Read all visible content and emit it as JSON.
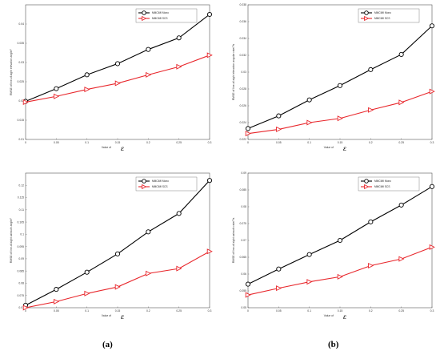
{
  "captions": [
    "(a)",
    "(b)"
  ],
  "chart_data": [
    {
      "type": "line",
      "x": [
        0,
        0.05,
        0.1,
        0.15,
        0.2,
        0.25,
        0.3
      ],
      "xticks": [
        "0",
        "0.05",
        "0.1",
        "0.15",
        "0.2",
        "0.25",
        "0.3"
      ],
      "ylim": [
        0.01,
        0.045
      ],
      "yticks": [
        "0.01",
        "0.015",
        "0.02",
        "0.025",
        "0.03",
        "0.035",
        "0.04"
      ],
      "xlabel": "Value of",
      "xsymbol": "ε",
      "ylabel": "RMSE of line-of-sight elevation angle/°",
      "series": [
        {
          "name": "MMCIMI Mono",
          "color": "#000000",
          "marker": "circle",
          "values": [
            0.0199,
            0.0232,
            0.0268,
            0.0297,
            0.0334,
            0.0364,
            0.0425
          ]
        },
        {
          "name": "MMCIMI SCS",
          "color": "#e8262b",
          "marker": "triangle",
          "values": [
            0.0197,
            0.0212,
            0.023,
            0.0246,
            0.0268,
            0.0289,
            0.0319
          ]
        }
      ]
    },
    {
      "type": "line",
      "x": [
        0,
        0.05,
        0.1,
        0.15,
        0.2,
        0.25,
        0.3
      ],
      "xticks": [
        "0",
        "0.05",
        "0.1",
        "0.15",
        "0.2",
        "0.25",
        "0.3"
      ],
      "ylim": [
        0.022,
        0.038
      ],
      "yticks": [
        "0.022",
        "0.024",
        "0.026",
        "0.028",
        "0.03",
        "0.032",
        "0.034",
        "0.036",
        "0.038"
      ],
      "xlabel": "Value of",
      "xsymbol": "ε",
      "ylabel": "RMSE of line-of-sight elevation angular rate/°/s",
      "series": [
        {
          "name": "MMCIMI Mono",
          "color": "#000000",
          "marker": "circle",
          "values": [
            0.0233,
            0.0248,
            0.0267,
            0.0284,
            0.0303,
            0.0321,
            0.0355
          ]
        },
        {
          "name": "MMCIMI SCS",
          "color": "#e8262b",
          "marker": "triangle",
          "values": [
            0.0227,
            0.0232,
            0.024,
            0.0245,
            0.0255,
            0.0264,
            0.0277
          ]
        }
      ]
    },
    {
      "type": "line",
      "x": [
        0,
        0.05,
        0.1,
        0.15,
        0.2,
        0.25,
        0.3
      ],
      "xticks": [
        "0",
        "0.05",
        "0.1",
        "0.15",
        "0.2",
        "0.25",
        "0.3"
      ],
      "ylim": [
        0.07,
        0.125
      ],
      "yticks": [
        "0.07",
        "0.075",
        "0.08",
        "0.085",
        "0.09",
        "0.095",
        "0.1",
        "0.105",
        "0.11",
        "0.115",
        "0.12"
      ],
      "xlabel": "Value of",
      "xsymbol": "ε",
      "ylabel": "RMSE of line-of-sight azimuth angle/°",
      "series": [
        {
          "name": "MMCIMI Mono",
          "color": "#000000",
          "marker": "circle",
          "values": [
            0.071,
            0.0775,
            0.0845,
            0.092,
            0.101,
            0.1085,
            0.122
          ]
        },
        {
          "name": "MMCIMI SCS",
          "color": "#e8262b",
          "marker": "triangle",
          "values": [
            0.07,
            0.0725,
            0.0758,
            0.0785,
            0.084,
            0.086,
            0.093
          ]
        }
      ]
    },
    {
      "type": "line",
      "x": [
        0,
        0.05,
        0.1,
        0.15,
        0.2,
        0.25,
        0.3
      ],
      "xticks": [
        "0",
        "0.05",
        "0.1",
        "0.15",
        "0.2",
        "0.25",
        "0.3"
      ],
      "ylim": [
        0.05,
        0.09
      ],
      "yticks": [
        "0.05",
        "0.055",
        "0.06",
        "0.065",
        "0.07",
        "0.075",
        "0.08",
        "0.085",
        "0.09"
      ],
      "xlabel": "Value of",
      "xsymbol": "ε",
      "ylabel": "RMSE of line-of-sight azimuth rate/°/s",
      "series": [
        {
          "name": "MMCIMI Mono",
          "color": "#000000",
          "marker": "circle",
          "values": [
            0.057,
            0.0615,
            0.0658,
            0.07,
            0.0755,
            0.0805,
            0.086
          ]
        },
        {
          "name": "MMCIMI SCS",
          "color": "#e8262b",
          "marker": "triangle",
          "values": [
            0.0538,
            0.0558,
            0.0577,
            0.0592,
            0.0625,
            0.0645,
            0.068
          ]
        }
      ]
    }
  ]
}
